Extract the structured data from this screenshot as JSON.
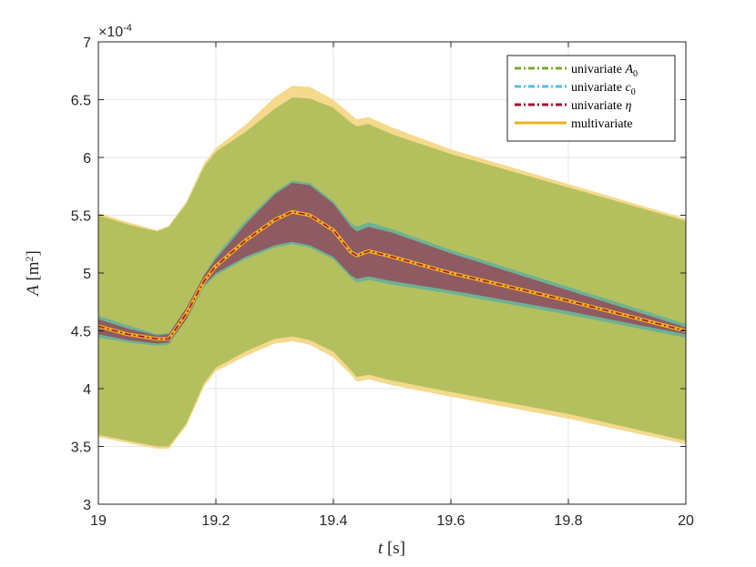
{
  "chart_data": {
    "type": "area",
    "xlim": [
      19,
      20
    ],
    "ylim": [
      3,
      7
    ],
    "x_ticks": [
      19,
      19.2,
      19.4,
      19.6,
      19.8,
      20
    ],
    "x_tick_labels": [
      "19",
      "19.2",
      "19.4",
      "19.6",
      "19.8",
      "20"
    ],
    "y_ticks": [
      3,
      3.5,
      4,
      4.5,
      5,
      5.5,
      6,
      6.5,
      7
    ],
    "y_tick_labels": [
      "3",
      "3.5",
      "4",
      "4.5",
      "5",
      "5.5",
      "6",
      "6.5",
      "7"
    ],
    "y_exponent": "×10",
    "y_exponent_power": "-4",
    "xlabel_var": "t",
    "xlabel_unit": "[s]",
    "ylabel_var": "A",
    "ylabel_unit": "[m",
    "ylabel_unit_sup": "2",
    "ylabel_unit_close": "]",
    "grid": true,
    "legend_position": "top-right",
    "x": [
      19.0,
      19.05,
      19.1,
      19.12,
      19.15,
      19.18,
      19.2,
      19.25,
      19.3,
      19.33,
      19.36,
      19.4,
      19.43,
      19.44,
      19.46,
      19.5,
      19.6,
      19.8,
      20.0
    ],
    "series": [
      {
        "name": "univariate ",
        "math": "A",
        "sub": "0",
        "color": "#77ac30",
        "fill": "#b4c05e",
        "upper": [
          5.5,
          5.42,
          5.36,
          5.4,
          5.6,
          5.92,
          6.05,
          6.22,
          6.42,
          6.52,
          6.51,
          6.43,
          6.3,
          6.27,
          6.29,
          6.2,
          6.03,
          5.74,
          5.45
        ],
        "lower": [
          3.6,
          3.55,
          3.5,
          3.5,
          3.7,
          4.05,
          4.18,
          4.32,
          4.43,
          4.45,
          4.42,
          4.32,
          4.16,
          4.1,
          4.12,
          4.07,
          3.97,
          3.78,
          3.55
        ]
      },
      {
        "name": "univariate ",
        "math": "c",
        "sub": "0",
        "color": "#4dbeee",
        "fill": "#6db293",
        "upper": [
          4.63,
          4.55,
          4.47,
          4.48,
          4.7,
          4.98,
          5.15,
          5.45,
          5.7,
          5.8,
          5.78,
          5.62,
          5.43,
          5.4,
          5.44,
          5.38,
          5.2,
          4.88,
          4.56
        ],
        "lower": [
          4.44,
          4.4,
          4.37,
          4.38,
          4.6,
          4.88,
          4.98,
          5.12,
          5.22,
          5.25,
          5.22,
          5.12,
          4.96,
          4.92,
          4.94,
          4.9,
          4.82,
          4.64,
          4.44
        ]
      },
      {
        "name": "univariate ",
        "math": "η",
        "sub": "",
        "color": "#a2142f",
        "fill": "#8e5b62",
        "upper": [
          4.6,
          4.52,
          4.46,
          4.47,
          4.7,
          4.98,
          5.12,
          5.42,
          5.68,
          5.78,
          5.76,
          5.6,
          5.4,
          5.36,
          5.4,
          5.35,
          5.17,
          4.85,
          4.53
        ],
        "lower": [
          4.47,
          4.42,
          4.39,
          4.4,
          4.6,
          4.9,
          5.0,
          5.14,
          5.24,
          5.27,
          5.24,
          5.14,
          4.98,
          4.95,
          4.97,
          4.93,
          4.85,
          4.67,
          4.47
        ]
      },
      {
        "name": "multivariate",
        "math": "",
        "sub": "",
        "color": "#edb120",
        "fill": "#f5d98c",
        "mean": [
          4.54,
          4.47,
          4.43,
          4.43,
          4.65,
          4.93,
          5.06,
          5.28,
          5.46,
          5.53,
          5.5,
          5.37,
          5.18,
          5.15,
          5.19,
          5.14,
          5.0,
          4.76,
          4.5
        ],
        "upper": [
          5.52,
          5.44,
          5.37,
          5.41,
          5.62,
          5.95,
          6.08,
          6.28,
          6.52,
          6.62,
          6.61,
          6.5,
          6.37,
          6.33,
          6.35,
          6.26,
          6.07,
          5.77,
          5.47
        ],
        "lower": [
          3.58,
          3.53,
          3.48,
          3.48,
          3.68,
          4.02,
          4.15,
          4.28,
          4.39,
          4.41,
          4.38,
          4.27,
          4.12,
          4.06,
          4.08,
          4.03,
          3.93,
          3.74,
          3.52
        ]
      }
    ]
  }
}
